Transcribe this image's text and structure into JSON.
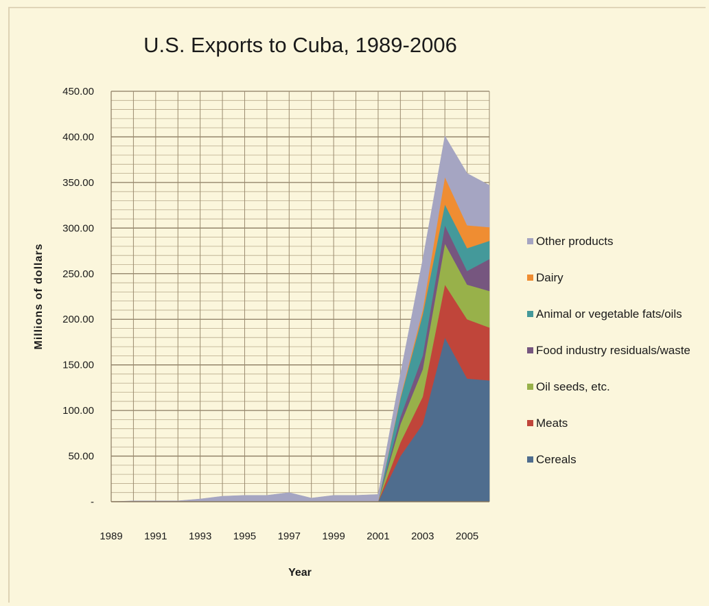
{
  "chart_data": {
    "type": "area",
    "stacked": true,
    "title": "U.S. Exports to Cuba, 1989-2006",
    "xlabel": "Year",
    "ylabel": "Millions of dollars",
    "ylim": [
      0,
      450
    ],
    "yticks": [
      "-",
      "50.00",
      "100.00",
      "150.00",
      "200.00",
      "250.00",
      "300.00",
      "350.00",
      "400.00",
      "450.00"
    ],
    "xticks": [
      "1989",
      "1991",
      "1993",
      "1995",
      "1997",
      "1999",
      "2001",
      "2003",
      "2005"
    ],
    "x": [
      1989,
      1990,
      1991,
      1992,
      1993,
      1994,
      1995,
      1996,
      1997,
      1998,
      1999,
      2000,
      2001,
      2002,
      2003,
      2004,
      2005,
      2006
    ],
    "grid": true,
    "legend_position": "right",
    "series": [
      {
        "name": "Cereals",
        "color": "#4f6d8e",
        "values": [
          0,
          0,
          0,
          0,
          0,
          0,
          0,
          0,
          0,
          0,
          0,
          0,
          0,
          50,
          85,
          180,
          135,
          133
        ]
      },
      {
        "name": "Meats",
        "color": "#c0453a",
        "values": [
          0,
          0,
          0,
          0,
          0,
          0,
          0,
          0,
          0,
          0,
          0,
          0,
          0,
          15,
          30,
          58,
          65,
          58
        ]
      },
      {
        "name": "Oil seeds, etc.",
        "color": "#98b14a",
        "values": [
          0,
          0,
          0,
          0,
          0,
          0,
          0,
          0,
          0,
          0,
          0,
          0,
          0,
          20,
          30,
          45,
          38,
          40
        ]
      },
      {
        "name": "Food industry residuals/waste",
        "color": "#76567f",
        "values": [
          0,
          0,
          0,
          0,
          0,
          0,
          0,
          0,
          0,
          0,
          0,
          0,
          0,
          8,
          15,
          20,
          15,
          35
        ]
      },
      {
        "name": "Animal or vegetable fats/oils",
        "color": "#44999a",
        "values": [
          0,
          0,
          0,
          0,
          0,
          0,
          0,
          0,
          0,
          0,
          0,
          0,
          0,
          20,
          45,
          23,
          25,
          20
        ]
      },
      {
        "name": "Dairy",
        "color": "#ef8d32",
        "values": [
          0,
          0,
          0,
          0,
          0,
          0,
          0,
          0,
          0,
          0,
          0,
          0,
          0,
          2,
          5,
          30,
          25,
          15
        ]
      },
      {
        "name": "Other products",
        "color": "#a5a5c2",
        "values": [
          0,
          1,
          1,
          1,
          3,
          6,
          7,
          7,
          10,
          4,
          7,
          7,
          8,
          25,
          55,
          45,
          57,
          46
        ]
      }
    ]
  },
  "legend_order": [
    "Other products",
    "Dairy",
    "Animal or vegetable fats/oils",
    "Food industry residuals/waste",
    "Oil seeds, etc.",
    "Meats",
    "Cereals"
  ]
}
